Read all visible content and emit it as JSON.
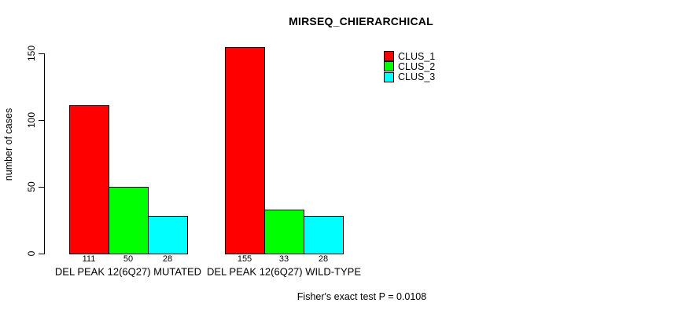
{
  "chart_data": {
    "type": "bar",
    "title": "MIRSEQ_CHIERARCHICAL",
    "xlabel": "",
    "ylabel": "number of cases",
    "ylim": [
      0,
      155
    ],
    "yticks": [
      0,
      50,
      100,
      150
    ],
    "grid": false,
    "legend_position": "top-right-inside",
    "categories": [
      "DEL PEAK 12(6Q27) MUTATED",
      "DEL PEAK 12(6Q27) WILD-TYPE"
    ],
    "series": [
      {
        "name": "CLUS_1",
        "color": "#FF0000",
        "values": [
          111,
          155
        ]
      },
      {
        "name": "CLUS_2",
        "color": "#00FF00",
        "values": [
          50,
          33
        ]
      },
      {
        "name": "CLUS_3",
        "color": "#00FFFF",
        "values": [
          28,
          28
        ]
      }
    ],
    "bar_value_labels_shown": true,
    "annotation": "Fisher's exact test P = 0.0108"
  },
  "colors": {
    "background": "#FFFFFF",
    "axis": "#000000",
    "text": "#000000",
    "bar_border": "#000000"
  }
}
